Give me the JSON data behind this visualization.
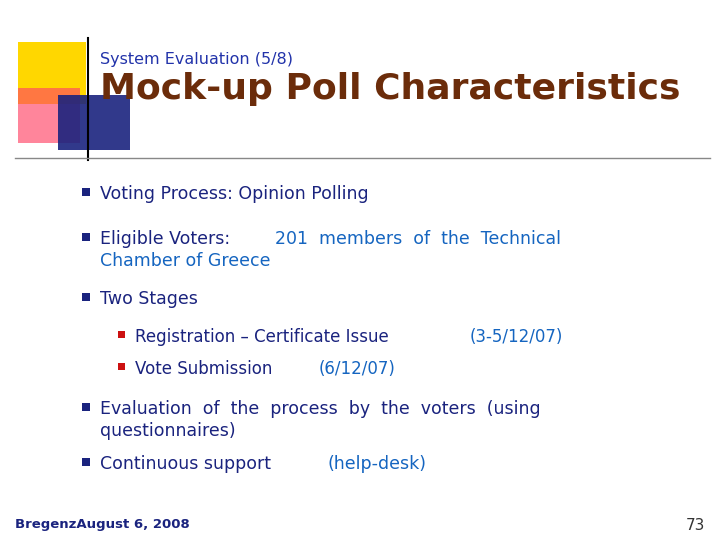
{
  "subtitle": "System Evaluation (5/8)",
  "title": "Mock-up Poll Characteristics",
  "subtitle_color": "#2233aa",
  "title_color": "#6b2c0a",
  "bg_color": "#ffffff",
  "bullet_color": "#1a237e",
  "sub_bullet_color": "#cc1111",
  "highlight_color": "#1565c0",
  "dark_text": "#1a237e",
  "footer_text": "Bregenz​August 6, 2008",
  "page_number": "73",
  "deco_yellow": "#FFD700",
  "deco_red": "#FF4466",
  "deco_blue": "#1a237e",
  "bullets": [
    {
      "segments": [
        [
          "Voting Process: Opinion Polling",
          "#1a237e"
        ]
      ],
      "level": 0,
      "multiline": false
    },
    {
      "segments": [
        [
          "Eligible Voters: ",
          "#1a237e"
        ],
        [
          "201  members  of  the  Technical",
          "#1565c0"
        ]
      ],
      "line2": [
        "Chamber of Greece",
        "#1565c0"
      ],
      "level": 0,
      "multiline": true
    },
    {
      "segments": [
        [
          "Two Stages",
          "#1a237e"
        ]
      ],
      "level": 0,
      "multiline": false
    },
    {
      "segments": [
        [
          "Registration – Certificate Issue ",
          "#1a237e"
        ],
        [
          "(3-5/12/07)",
          "#1565c0"
        ]
      ],
      "level": 1,
      "multiline": false
    },
    {
      "segments": [
        [
          "Vote Submission ",
          "#1a237e"
        ],
        [
          "(6/12/07)",
          "#1565c0"
        ]
      ],
      "level": 1,
      "multiline": false
    },
    {
      "segments": [
        [
          "Evaluation  of  the  process  by  the  voters  (using",
          "#1a237e"
        ]
      ],
      "line2": [
        "questionnaires)",
        "#1a237e"
      ],
      "level": 0,
      "multiline": true
    },
    {
      "segments": [
        [
          "Continuous support ",
          "#1a237e"
        ],
        [
          "(help-desk)",
          "#1565c0"
        ]
      ],
      "level": 0,
      "multiline": false
    }
  ]
}
